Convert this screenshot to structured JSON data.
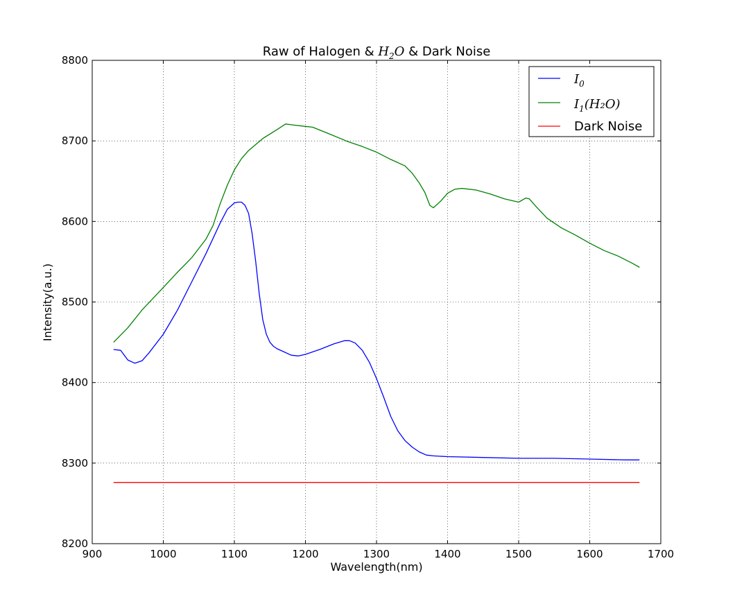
{
  "chart_data": {
    "type": "line",
    "title": {
      "pre": "Raw of Halogen & ",
      "math": "H",
      "math_sub": "2",
      "math_tail": "O",
      "post": " & Dark Noise"
    },
    "xlabel": "Wavelength(nm)",
    "ylabel": "Intensity(a.u.)",
    "xlim": [
      900,
      1700
    ],
    "ylim": [
      8200,
      8800
    ],
    "xticks": [
      900,
      1000,
      1100,
      1200,
      1300,
      1400,
      1500,
      1600,
      1700
    ],
    "yticks": [
      8200,
      8300,
      8400,
      8500,
      8600,
      8700,
      8800
    ],
    "grid": true,
    "legend_position": "top-right",
    "legend": [
      {
        "label": "I",
        "sub": "0",
        "tail": "",
        "color": "#0000ff"
      },
      {
        "label": "I",
        "sub": "1",
        "tail": "(H₂O)",
        "color": "#008000"
      },
      {
        "label": "Dark Noise",
        "sub": "",
        "tail": "",
        "color": "#ff0000"
      }
    ],
    "series": [
      {
        "name": "I0",
        "color": "#0000ff",
        "x": [
          930,
          940,
          950,
          960,
          970,
          980,
          1000,
          1020,
          1040,
          1060,
          1080,
          1090,
          1100,
          1105,
          1110,
          1115,
          1120,
          1125,
          1130,
          1135,
          1140,
          1145,
          1150,
          1155,
          1160,
          1170,
          1180,
          1190,
          1200,
          1220,
          1240,
          1255,
          1262,
          1270,
          1280,
          1290,
          1300,
          1310,
          1320,
          1330,
          1340,
          1350,
          1360,
          1370,
          1380,
          1400,
          1450,
          1500,
          1550,
          1600,
          1650,
          1670
        ],
        "y": [
          8441,
          8440,
          8428,
          8424,
          8427,
          8437,
          8460,
          8490,
          8525,
          8560,
          8598,
          8615,
          8623,
          8624,
          8624,
          8620,
          8610,
          8585,
          8550,
          8510,
          8478,
          8460,
          8450,
          8445,
          8442,
          8438,
          8434,
          8433,
          8435,
          8441,
          8448,
          8452,
          8452,
          8449,
          8440,
          8425,
          8405,
          8382,
          8358,
          8340,
          8328,
          8320,
          8314,
          8310,
          8309,
          8308,
          8307,
          8306,
          8306,
          8305,
          8304,
          8304
        ]
      },
      {
        "name": "I1(H2O)",
        "color": "#008000",
        "x": [
          930,
          950,
          970,
          1000,
          1020,
          1040,
          1060,
          1070,
          1080,
          1090,
          1100,
          1110,
          1120,
          1140,
          1160,
          1172,
          1180,
          1200,
          1210,
          1230,
          1260,
          1280,
          1300,
          1320,
          1340,
          1350,
          1360,
          1368,
          1375,
          1380,
          1390,
          1400,
          1410,
          1420,
          1440,
          1460,
          1480,
          1500,
          1510,
          1515,
          1525,
          1540,
          1560,
          1580,
          1600,
          1620,
          1640,
          1660,
          1670
        ],
        "y": [
          8450,
          8468,
          8490,
          8518,
          8537,
          8555,
          8578,
          8595,
          8622,
          8645,
          8664,
          8678,
          8688,
          8703,
          8714,
          8721,
          8720,
          8718,
          8717,
          8710,
          8699,
          8693,
          8686,
          8677,
          8669,
          8660,
          8648,
          8636,
          8620,
          8617,
          8625,
          8635,
          8640,
          8641,
          8639,
          8634,
          8628,
          8624,
          8629,
          8628,
          8618,
          8604,
          8592,
          8583,
          8573,
          8564,
          8557,
          8548,
          8543
        ]
      },
      {
        "name": "Dark Noise",
        "color": "#ff0000",
        "x": [
          930,
          1000,
          1100,
          1200,
          1300,
          1400,
          1500,
          1600,
          1670
        ],
        "y": [
          8276,
          8276,
          8276,
          8276,
          8276,
          8276,
          8276,
          8276,
          8276
        ]
      }
    ]
  }
}
